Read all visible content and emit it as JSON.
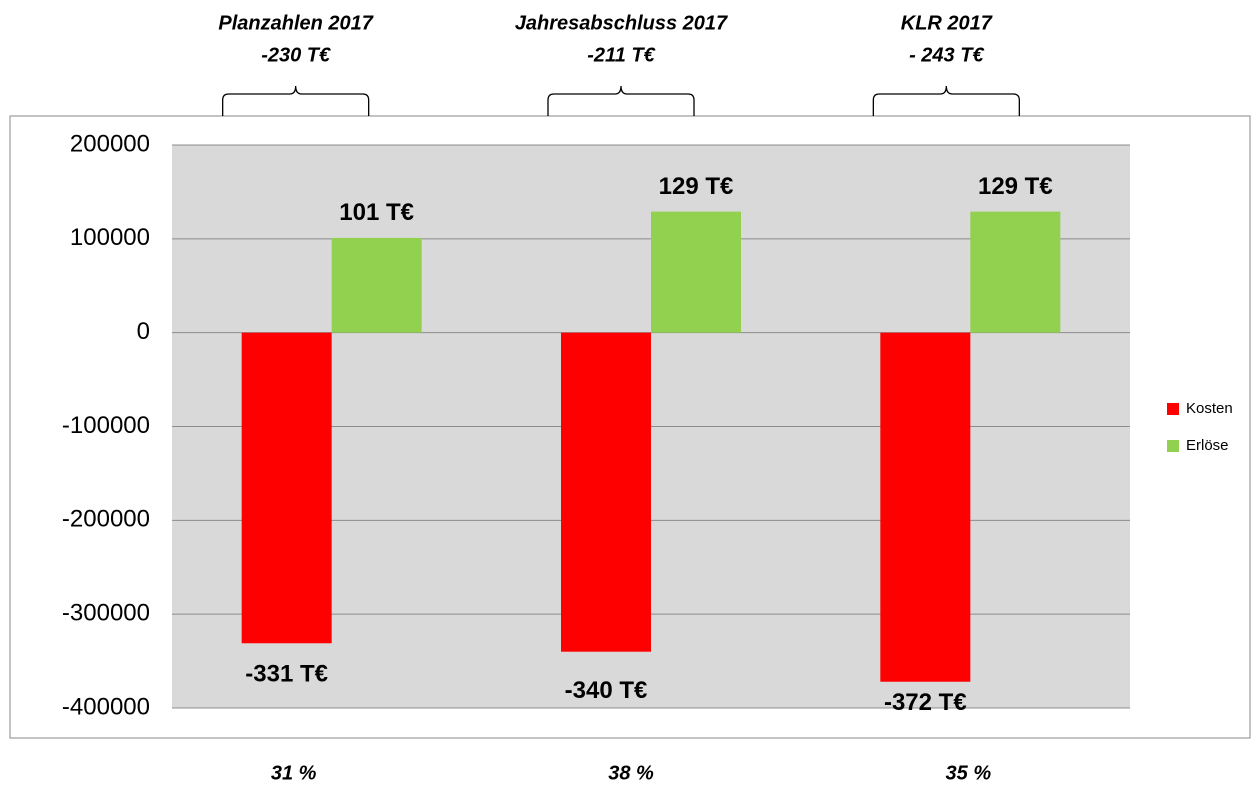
{
  "chart_data": {
    "type": "bar",
    "categories": [
      null,
      null,
      null
    ],
    "series": [
      {
        "name": "Kosten",
        "color": "#ff0000",
        "values": [
          -331000,
          -340000,
          -372000
        ],
        "value_labels": [
          "-331 T€",
          "-340 T€",
          "-372 T€"
        ]
      },
      {
        "name": "Erlöse",
        "color": "#92d050",
        "values": [
          101000,
          129000,
          129000
        ],
        "value_labels": [
          "101 T€",
          "129 T€",
          "129 T€"
        ]
      }
    ],
    "group_annotations": [
      {
        "title": "Planzahlen 2017",
        "result": "-230 T€",
        "ratio": "31 %"
      },
      {
        "title": "Jahresabschluss 2017",
        "result": "-211 T€",
        "ratio": "38 %"
      },
      {
        "title": "KLR 2017",
        "result": "- 243 T€",
        "ratio": "35 %"
      }
    ],
    "ylim": [
      -400000,
      200000
    ],
    "yticks": [
      -400000,
      -300000,
      -200000,
      -100000,
      0,
      100000,
      200000
    ],
    "grid": true,
    "legend": "right"
  }
}
